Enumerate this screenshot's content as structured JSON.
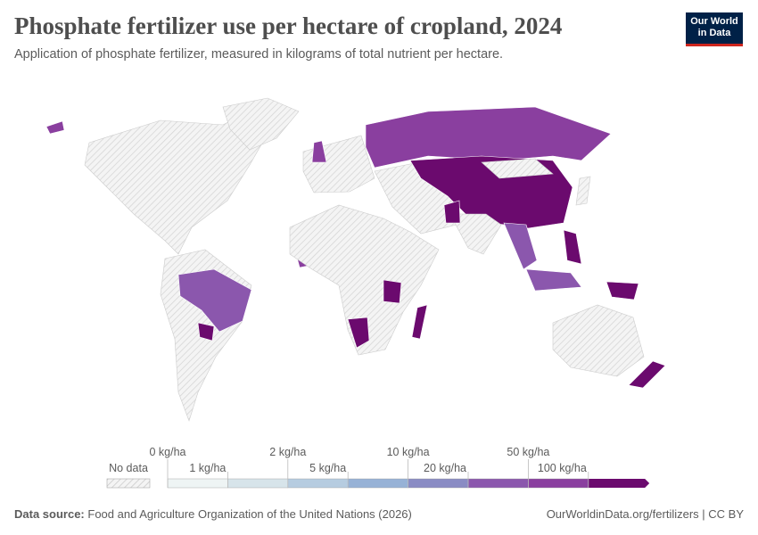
{
  "header": {
    "title": "Phosphate fertilizer use per hectare of cropland, 2024",
    "subtitle": "Application of phosphate fertilizer, measured in kilograms of total nutrient per hectare.",
    "logo": [
      "Our World",
      "in Data"
    ]
  },
  "legend": {
    "no_data": "No data",
    "ticks": [
      "0 kg/ha",
      "1 kg/ha",
      "2 kg/ha",
      "5 kg/ha",
      "10 kg/ha",
      "20 kg/ha",
      "50 kg/ha",
      "100 kg/ha"
    ],
    "colors": [
      "#eef4f4",
      "#d7e4ea",
      "#b6cce0",
      "#97b2d6",
      "#8a8cc4",
      "#8b57ad",
      "#8a3f9f",
      "#6b0a6e"
    ]
  },
  "footer": {
    "source_label": "Data source:",
    "source": "Food and Agriculture Organization of the United Nations (2026)",
    "url": "OurWorldinData.org/fertilizers | CC BY"
  }
}
